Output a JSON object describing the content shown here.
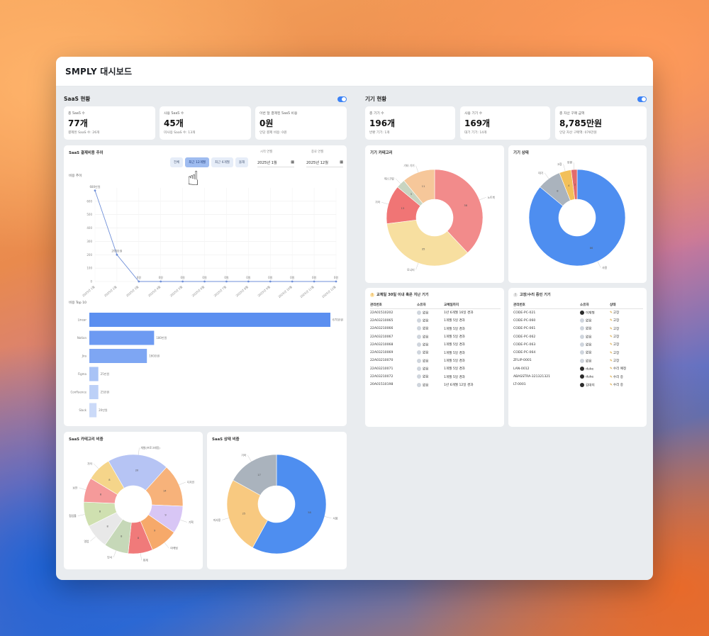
{
  "window": {
    "title": "SMPLY 대시보드"
  },
  "saas": {
    "section_title": "SaaS 현황",
    "stats": [
      {
        "label": "총 SaaS 수",
        "value": "77개",
        "sub": "결제된 SaaS 수: 26개"
      },
      {
        "label": "사용 SaaS 수",
        "value": "45개",
        "sub": "미사용 SaaS 수: 13개"
      },
      {
        "label": "이번 달 결제된 SaaS 비용",
        "value": "0원",
        "sub": "인당 결제 비용: 0원"
      }
    ],
    "trend": {
      "title": "SaaS 결제비용 추이",
      "buttons": [
        "전체",
        "최근 12개월",
        "최근 6개월",
        "올해"
      ],
      "start_label": "시작 연월",
      "start_value": "2025년 1월",
      "end_label": "종료 연월",
      "end_value": "2025년 12월",
      "cost_chart_title": "비용 추이",
      "top_title": "비용 Top 10"
    },
    "category_share_title": "SaaS 카테고리 비중",
    "status_share_title": "SaaS 상태 비중"
  },
  "devices": {
    "section_title": "기기 현황",
    "stats": [
      {
        "label": "총 기기 수",
        "value": "196개",
        "sub": "반환 기기: 1개"
      },
      {
        "label": "사용 기기 수",
        "value": "169개",
        "sub": "대기 기기: 14개"
      },
      {
        "label": "총 자산 구매 금액",
        "value": "8,785만원",
        "sub": "인당 자산 구매액: 076만원"
      }
    ],
    "category_title": "기기 카테고리",
    "status_title": "기기 상태",
    "replacement": {
      "title": "교체일 30일 이내 혹은 지난 기기",
      "columns": [
        "관리번호",
        "소유자",
        "교체일까지"
      ],
      "rows": [
        [
          "22A01510202",
          "없음",
          "1년 6개월 16일 경과"
        ],
        [
          "22A03210065",
          "없음",
          "1개월 5일 경과"
        ],
        [
          "22A03210066",
          "없음",
          "1개월 5일 경과"
        ],
        [
          "22A03210067",
          "없음",
          "1개월 5일 경과"
        ],
        [
          "22A03210068",
          "없음",
          "1개월 5일 경과"
        ],
        [
          "22A03210069",
          "없음",
          "1개월 5일 경과"
        ],
        [
          "22A03210070",
          "없음",
          "1개월 5일 경과"
        ],
        [
          "22A03210071",
          "없음",
          "1개월 5일 경과"
        ],
        [
          "22A03210072",
          "없음",
          "1개월 5일 경과"
        ],
        [
          "20A01510198",
          "없음",
          "1년 6개월 12일 경과"
        ]
      ]
    },
    "repair": {
      "title": "고장/수리 중인 기기",
      "columns": [
        "관리번호",
        "소유자",
        "상태"
      ],
      "rows": [
        [
          "CODE-PC-021",
          "이재형",
          "고장"
        ],
        [
          "CODE-PC-060",
          "없음",
          "고장"
        ],
        [
          "CODE-PC-061",
          "없음",
          "고장"
        ],
        [
          "CODE-PC-062",
          "없음",
          "고장"
        ],
        [
          "CODE-PC-063",
          "없음",
          "고장"
        ],
        [
          "CODE-PC-064",
          "없음",
          "고장"
        ],
        [
          "ZFLIP-0001",
          "없음",
          "고장"
        ],
        [
          "LAN-0012",
          "duke",
          "수리 예정"
        ],
        [
          "ABASSTRA-321321321",
          "duke",
          "수리 중"
        ],
        [
          "LT-0001",
          "김대지",
          "수리 중"
        ]
      ]
    }
  },
  "chart_data": [
    {
      "type": "line",
      "title": "비용 추이",
      "x": [
        "2025년 1월",
        "2025년 2월",
        "2025년 3월",
        "2025년 4월",
        "2025년 5월",
        "2025년 6월",
        "2025년 7월",
        "2025년 8월",
        "2025년 9월",
        "2025년 10월",
        "2025년 11월",
        "2025년 12월"
      ],
      "values": [
        680,
        200,
        0,
        0,
        0,
        0,
        0,
        0,
        0,
        0,
        0,
        0
      ],
      "point_labels": [
        "680만원",
        "200만원",
        "0원",
        "0원",
        "0원",
        "0원",
        "0원",
        "0원",
        "0원",
        "0원",
        "0원",
        "0원"
      ],
      "ylim": [
        0,
        700
      ],
      "y_ticks": [
        0,
        100,
        200,
        300,
        400,
        500,
        600
      ],
      "color": "#6f8fd8"
    },
    {
      "type": "bar",
      "orientation": "horizontal",
      "title": "비용 Top 10",
      "categories": [
        "Linear",
        "Notion",
        "Jira",
        "Figma",
        "Confluence",
        "Slack"
      ],
      "values": [
        670,
        180,
        160,
        25,
        25,
        20
      ],
      "value_labels": [
        "670만원",
        "180만원",
        "160만원",
        "25만원",
        "25만원",
        "20만원"
      ],
      "colors": [
        "#5b8ff0",
        "#6d9af2",
        "#7ea6f3",
        "#a9c3f6",
        "#bcd0f7",
        "#cbdaf8"
      ]
    },
    {
      "type": "pie",
      "title": "기기 카테고리",
      "labels": [
        "노트북",
        "모니터",
        "기타",
        "데스크탑",
        "기타 기기"
      ],
      "values": [
        38,
        35,
        13,
        3,
        11
      ],
      "colors": [
        "#f28b8b",
        "#f7dfa0",
        "#f07575",
        "#c8d4c0",
        "#f6c79a"
      ]
    },
    {
      "type": "pie",
      "title": "기기 상태",
      "labels": [
        "사용",
        "대기",
        "고장",
        "반환"
      ],
      "values": [
        86,
        8,
        4,
        2
      ],
      "colors": [
        "#4e8ef0",
        "#aab3bd",
        "#f2c05a",
        "#e26b6b"
      ]
    },
    {
      "type": "pie",
      "title": "SaaS 카테고리 비중",
      "labels": [
        "개발(프로그래밍)",
        "디자인",
        "기획",
        "마케팅",
        "회계",
        "인사",
        "영업",
        "협업툴",
        "보안",
        "기타"
      ],
      "values": [
        20,
        14,
        9,
        9,
        8,
        8,
        8,
        8,
        8,
        8
      ],
      "colors": [
        "#b6c4f4",
        "#f7b27a",
        "#d8c6f5",
        "#f6a96a",
        "#f07a7a",
        "#c6d8b8",
        "#e8e8e8",
        "#cfe0b0",
        "#f59a9a",
        "#f5d58a"
      ]
    },
    {
      "type": "pie",
      "title": "SaaS 상태 비중",
      "labels": [
        "사용",
        "미사용",
        "기타"
      ],
      "values": [
        58,
        25,
        17
      ],
      "colors": [
        "#4e8ef0",
        "#f8c980",
        "#aab3bd"
      ]
    }
  ]
}
